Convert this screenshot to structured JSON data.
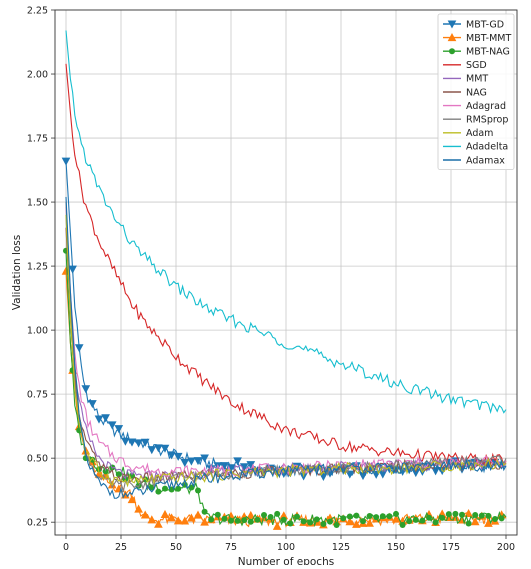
{
  "chart_data": {
    "type": "line",
    "title": "",
    "xlabel": "Number of epochs",
    "ylabel": "Validation loss",
    "xlim": [
      -5,
      205
    ],
    "ylim": [
      0.2,
      2.25
    ],
    "xticks": [
      0,
      25,
      50,
      75,
      100,
      125,
      150,
      175,
      200
    ],
    "yticks": [
      0.25,
      0.5,
      0.75,
      1.0,
      1.25,
      1.5,
      1.75,
      2.0,
      2.25
    ],
    "ytick_labels": [
      "0.25",
      "0.50",
      "0.75",
      "1.00",
      "1.25",
      "1.50",
      "1.75",
      "2.00",
      "2.25"
    ],
    "grid": true,
    "legend_position": "top-right",
    "x": [
      0,
      2,
      4,
      6,
      8,
      10,
      15,
      20,
      25,
      30,
      35,
      40,
      50,
      60,
      63,
      75,
      100,
      125,
      150,
      175,
      200
    ],
    "series": [
      {
        "name": "MBT-GD",
        "color": "#1f77b4",
        "marker": "triangle-down",
        "values": [
          1.66,
          1.38,
          1.1,
          0.92,
          0.8,
          0.74,
          0.66,
          0.62,
          0.59,
          0.57,
          0.56,
          0.54,
          0.51,
          0.49,
          0.48,
          0.47,
          0.45,
          0.45,
          0.46,
          0.47,
          0.47
        ]
      },
      {
        "name": "MBT-MMT",
        "color": "#ff7f0e",
        "marker": "triangle-up",
        "values": [
          1.23,
          0.95,
          0.75,
          0.62,
          0.55,
          0.5,
          0.43,
          0.4,
          0.38,
          0.36,
          0.27,
          0.26,
          0.26,
          0.26,
          0.26,
          0.255,
          0.255,
          0.26,
          0.26,
          0.265,
          0.265
        ]
      },
      {
        "name": "MBT-NAG",
        "color": "#2ca02c",
        "marker": "circle",
        "values": [
          1.31,
          0.95,
          0.7,
          0.6,
          0.54,
          0.5,
          0.47,
          0.46,
          0.45,
          0.42,
          0.4,
          0.39,
          0.38,
          0.38,
          0.27,
          0.26,
          0.26,
          0.26,
          0.26,
          0.265,
          0.27
        ]
      },
      {
        "name": "SGD",
        "color": "#d62728",
        "marker": "none",
        "values": [
          2.04,
          1.85,
          1.7,
          1.6,
          1.52,
          1.46,
          1.35,
          1.26,
          1.18,
          1.1,
          1.04,
          0.99,
          0.9,
          0.82,
          0.8,
          0.72,
          0.61,
          0.55,
          0.52,
          0.5,
          0.49
        ]
      },
      {
        "name": "MMT",
        "color": "#9467bd",
        "marker": "none",
        "values": [
          1.45,
          1.1,
          0.85,
          0.72,
          0.64,
          0.58,
          0.5,
          0.46,
          0.44,
          0.43,
          0.43,
          0.43,
          0.43,
          0.44,
          0.44,
          0.45,
          0.46,
          0.47,
          0.47,
          0.48,
          0.48
        ]
      },
      {
        "name": "NAG",
        "color": "#8c564b",
        "marker": "none",
        "values": [
          1.4,
          1.05,
          0.82,
          0.68,
          0.6,
          0.55,
          0.47,
          0.44,
          0.42,
          0.42,
          0.42,
          0.42,
          0.43,
          0.43,
          0.44,
          0.44,
          0.45,
          0.46,
          0.47,
          0.47,
          0.48
        ]
      },
      {
        "name": "Adagrad",
        "color": "#e377c2",
        "marker": "none",
        "values": [
          1.48,
          1.15,
          0.9,
          0.78,
          0.7,
          0.64,
          0.56,
          0.52,
          0.49,
          0.47,
          0.46,
          0.45,
          0.45,
          0.45,
          0.45,
          0.45,
          0.46,
          0.47,
          0.48,
          0.48,
          0.49
        ]
      },
      {
        "name": "RMSprop",
        "color": "#7f7f7f",
        "marker": "none",
        "values": [
          1.5,
          1.1,
          0.82,
          0.66,
          0.56,
          0.5,
          0.42,
          0.4,
          0.39,
          0.39,
          0.4,
          0.41,
          0.42,
          0.43,
          0.43,
          0.44,
          0.45,
          0.46,
          0.47,
          0.48,
          0.5
        ]
      },
      {
        "name": "Adam",
        "color": "#bcbd22",
        "marker": "none",
        "values": [
          1.45,
          1.05,
          0.78,
          0.64,
          0.56,
          0.51,
          0.45,
          0.42,
          0.41,
          0.41,
          0.41,
          0.42,
          0.42,
          0.43,
          0.43,
          0.44,
          0.45,
          0.46,
          0.46,
          0.47,
          0.48
        ]
      },
      {
        "name": "Adadelta",
        "color": "#17becf",
        "marker": "none",
        "values": [
          2.17,
          1.98,
          1.85,
          1.76,
          1.7,
          1.65,
          1.55,
          1.47,
          1.4,
          1.34,
          1.29,
          1.25,
          1.17,
          1.11,
          1.09,
          1.04,
          0.95,
          0.87,
          0.79,
          0.73,
          0.69
        ]
      },
      {
        "name": "Adamax",
        "color": "#1a6fa8",
        "marker": "none",
        "values": [
          1.52,
          1.15,
          0.85,
          0.66,
          0.55,
          0.48,
          0.4,
          0.37,
          0.36,
          0.36,
          0.37,
          0.38,
          0.4,
          0.41,
          0.42,
          0.43,
          0.45,
          0.46,
          0.46,
          0.47,
          0.47
        ]
      }
    ]
  }
}
